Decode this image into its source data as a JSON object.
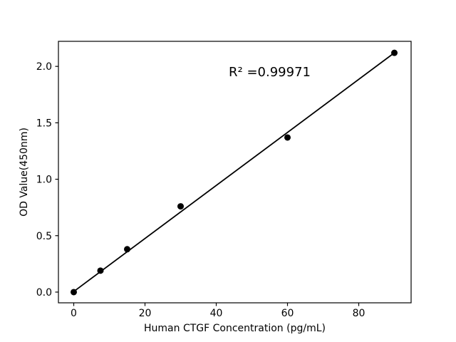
{
  "chart_data": {
    "type": "scatter",
    "title": "",
    "xlabel": "Human CTGF Concentration (pg/mL)",
    "ylabel": "OD Value(450nm)",
    "points": {
      "x": [
        0,
        7.5,
        15,
        30,
        60,
        90
      ],
      "y": [
        0.0,
        0.19,
        0.38,
        0.76,
        1.37,
        2.12
      ]
    },
    "trendline": {
      "x": [
        0,
        90
      ],
      "y": [
        0.005,
        2.12
      ]
    },
    "annotation": {
      "text": "R² =0.99971",
      "x": 55,
      "y": 1.954
    },
    "xticks": [
      "0",
      "20",
      "40",
      "60",
      "80"
    ],
    "yticks": [
      "0.0",
      "0.5",
      "1.0",
      "1.5",
      "2.0"
    ],
    "xlim": [
      -4.3,
      94.7
    ],
    "ylim": [
      -0.095,
      2.222
    ],
    "grid": false,
    "legend_position": "none",
    "marker_color": "#000000",
    "line_color": "#000000",
    "axis_color": "#000000",
    "background_color": "#ffffff"
  }
}
